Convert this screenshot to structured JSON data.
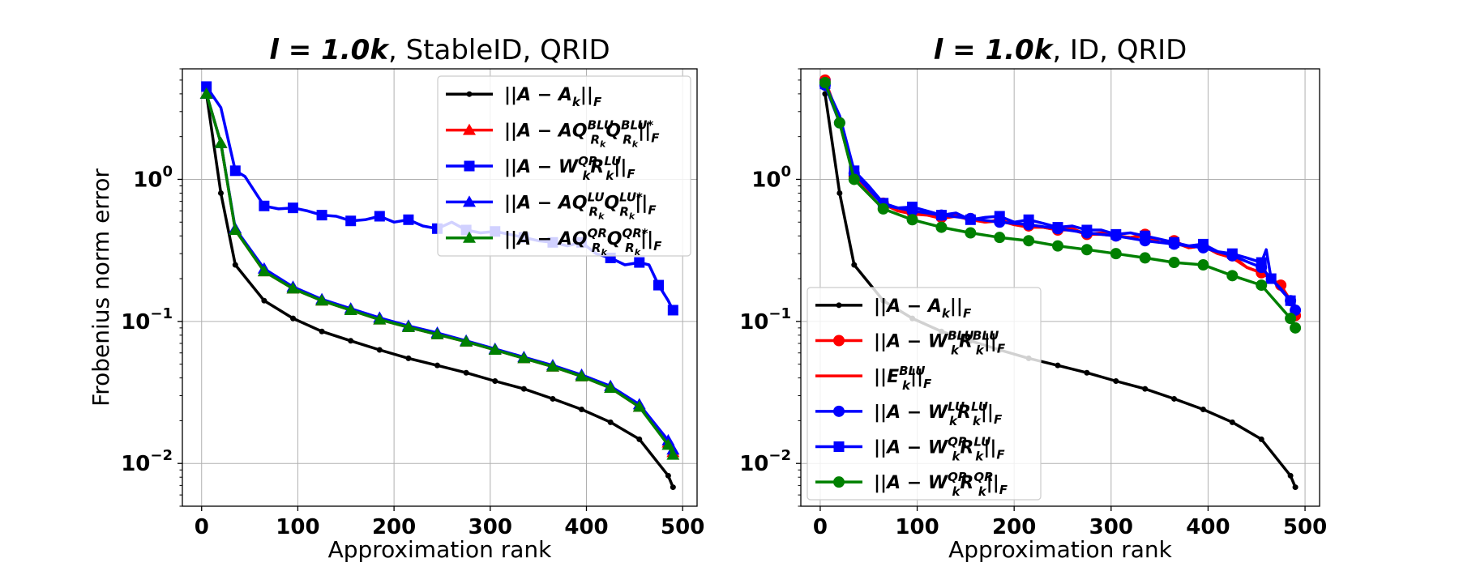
{
  "chart_data": [
    {
      "type": "line",
      "title": {
        "prefix": "l = 1.0k",
        "suffix": ", StableID, QRID"
      },
      "xlabel": "Approximation rank",
      "ylabel": "Frobenius norm error",
      "yscale": "log",
      "xlim": [
        -20,
        515
      ],
      "ylim": [
        0.005,
        6
      ],
      "xticks": [
        0,
        100,
        200,
        300,
        400,
        500
      ],
      "xtick_labels": [
        "0",
        "100",
        "200",
        "300",
        "400",
        "500"
      ],
      "yticks": [
        1,
        0.1,
        0.01
      ],
      "ytick_labels": [
        {
          "base": "10",
          "exp": "0"
        },
        {
          "base": "10",
          "exp": "−1"
        },
        {
          "base": "10",
          "exp": "−2"
        }
      ],
      "grid": true,
      "legend_position": "top-right",
      "series": [
        {
          "label": {
            "pre": "||A − A",
            "sub": "k",
            "post": "||",
            "tail": "F"
          },
          "color": "#000000",
          "marker": "dot",
          "x": [
            5,
            20,
            35,
            65,
            95,
            125,
            155,
            185,
            215,
            245,
            275,
            305,
            335,
            365,
            395,
            425,
            455,
            485,
            490
          ],
          "y": [
            4.0,
            0.8,
            0.25,
            0.14,
            0.105,
            0.085,
            0.073,
            0.063,
            0.055,
            0.049,
            0.0435,
            0.038,
            0.0335,
            0.0285,
            0.024,
            0.0195,
            0.0148,
            0.0082,
            0.0068
          ]
        },
        {
          "label": {
            "pre": "||A − AQ",
            "sup": "BLU",
            "sub": "R",
            "subsub": "k",
            "mid": "Q",
            "sup2": "BLU*",
            "sub2": "R",
            "subsub2": "k",
            "post": "||",
            "tail": "F"
          },
          "color": "#ff0000",
          "marker": "triangle",
          "x": [
            5,
            20,
            35,
            65,
            95,
            125,
            155,
            185,
            215,
            245,
            275,
            305,
            335,
            365,
            395,
            425,
            455,
            485,
            490
          ],
          "y": [
            4.0,
            1.8,
            0.44,
            0.225,
            0.17,
            0.14,
            0.12,
            0.103,
            0.091,
            0.081,
            0.072,
            0.063,
            0.055,
            0.048,
            0.041,
            0.034,
            0.025,
            0.014,
            0.012
          ]
        },
        {
          "label": {
            "pre": "||A − W",
            "sup": "QR",
            "sub": "k",
            "mid": "R",
            "sup2": "LU",
            "sub2": "k",
            "post": "||",
            "tail": "F"
          },
          "color": "#0000ff",
          "marker": "square",
          "x": [
            5,
            20,
            35,
            45,
            65,
            80,
            95,
            110,
            125,
            140,
            155,
            170,
            185,
            200,
            215,
            230,
            245,
            260,
            275,
            290,
            305,
            320,
            335,
            350,
            365,
            380,
            395,
            410,
            425,
            440,
            455,
            465,
            475,
            485,
            490
          ],
          "y": [
            4.5,
            3.2,
            1.15,
            1.05,
            0.65,
            0.62,
            0.63,
            0.6,
            0.56,
            0.55,
            0.51,
            0.52,
            0.55,
            0.5,
            0.52,
            0.47,
            0.45,
            0.5,
            0.44,
            0.42,
            0.43,
            0.41,
            0.39,
            0.37,
            0.36,
            0.34,
            0.36,
            0.3,
            0.28,
            0.25,
            0.26,
            0.25,
            0.18,
            0.14,
            0.12
          ]
        },
        {
          "label": {
            "pre": "||A − AQ",
            "sup": "LU",
            "sub": "R",
            "subsub": "k",
            "mid": "Q",
            "sup2": "LU*",
            "sub2": "R",
            "subsub2": "k",
            "post": "||",
            "tail": "F"
          },
          "color": "#0000ff",
          "marker": "triangle",
          "x": [
            5,
            20,
            35,
            65,
            95,
            125,
            155,
            185,
            215,
            245,
            275,
            305,
            335,
            365,
            395,
            425,
            455,
            485,
            490
          ],
          "y": [
            4.0,
            1.8,
            0.45,
            0.235,
            0.175,
            0.143,
            0.123,
            0.106,
            0.093,
            0.083,
            0.073,
            0.064,
            0.056,
            0.049,
            0.042,
            0.035,
            0.026,
            0.0145,
            0.0125
          ]
        },
        {
          "label": {
            "pre": "||A − AQ",
            "sup": "QR",
            "sub": "R",
            "subsub": "k",
            "mid": "Q",
            "sup2": "QR*",
            "sub2": "R",
            "subsub2": "k",
            "post": "||",
            "tail": "F"
          },
          "color": "#008000",
          "marker": "triangle",
          "x": [
            5,
            20,
            35,
            65,
            95,
            125,
            155,
            185,
            215,
            245,
            275,
            305,
            335,
            365,
            395,
            425,
            455,
            485,
            490
          ],
          "y": [
            4.0,
            1.8,
            0.44,
            0.225,
            0.17,
            0.14,
            0.12,
            0.103,
            0.091,
            0.081,
            0.072,
            0.063,
            0.055,
            0.048,
            0.041,
            0.034,
            0.025,
            0.0135,
            0.0115
          ]
        }
      ]
    },
    {
      "type": "line",
      "title": {
        "prefix": "l = 1.0k",
        "suffix": ", ID, QRID"
      },
      "xlabel": "Approximation rank",
      "ylabel": "",
      "yscale": "log",
      "xlim": [
        -20,
        515
      ],
      "ylim": [
        0.005,
        6
      ],
      "xticks": [
        0,
        100,
        200,
        300,
        400,
        500
      ],
      "xtick_labels": [
        "0",
        "100",
        "200",
        "300",
        "400",
        "500"
      ],
      "yticks": [
        1,
        0.1,
        0.01
      ],
      "ytick_labels": [
        {
          "base": "10",
          "exp": "0"
        },
        {
          "base": "10",
          "exp": "−1"
        },
        {
          "base": "10",
          "exp": "−2"
        }
      ],
      "grid": true,
      "legend_position": "bottom-left",
      "series": [
        {
          "label": {
            "pre": "||A − A",
            "sub": "k",
            "post": "||",
            "tail": "F"
          },
          "color": "#000000",
          "marker": "dot",
          "x": [
            5,
            20,
            35,
            65,
            95,
            125,
            155,
            185,
            215,
            245,
            275,
            305,
            335,
            365,
            395,
            425,
            455,
            485,
            490
          ],
          "y": [
            4.0,
            0.8,
            0.25,
            0.14,
            0.105,
            0.085,
            0.073,
            0.063,
            0.055,
            0.049,
            0.0435,
            0.038,
            0.0335,
            0.0285,
            0.024,
            0.0195,
            0.0148,
            0.0082,
            0.0068
          ]
        },
        {
          "label": {
            "pre": "||A − W",
            "sup": "BLU",
            "sub": "k",
            "mid": "R",
            "sup2": "BLU",
            "sub2": "k",
            "post": "||",
            "tail": "F"
          },
          "color": "#ff0000",
          "marker": "circle",
          "x": [
            5,
            20,
            35,
            50,
            65,
            80,
            95,
            110,
            125,
            140,
            155,
            170,
            185,
            200,
            215,
            230,
            245,
            260,
            275,
            290,
            305,
            320,
            335,
            350,
            365,
            380,
            395,
            410,
            425,
            440,
            455,
            465,
            475,
            485,
            490
          ],
          "y": [
            5.0,
            2.6,
            1.05,
            0.85,
            0.68,
            0.6,
            0.58,
            0.57,
            0.54,
            0.56,
            0.53,
            0.5,
            0.52,
            0.48,
            0.47,
            0.46,
            0.44,
            0.45,
            0.41,
            0.42,
            0.4,
            0.39,
            0.41,
            0.36,
            0.37,
            0.33,
            0.34,
            0.3,
            0.29,
            0.24,
            0.22,
            0.2,
            0.18,
            0.14,
            0.11
          ]
        },
        {
          "label": {
            "pre": "||E",
            "sup": "BLU",
            "sub": "k",
            "post": "||",
            "tail": "F"
          },
          "color": "#ff0000",
          "marker": "none",
          "x": [
            5,
            20,
            35,
            50,
            65,
            80,
            95,
            110,
            125,
            140,
            155,
            170,
            185,
            200,
            215,
            230,
            245,
            260,
            275,
            290,
            305,
            320,
            335,
            350,
            365,
            380,
            395,
            410,
            425,
            440,
            455,
            465,
            475,
            485,
            490
          ],
          "y": [
            5.0,
            2.5,
            1.02,
            0.83,
            0.67,
            0.6,
            0.57,
            0.56,
            0.53,
            0.55,
            0.52,
            0.5,
            0.51,
            0.48,
            0.46,
            0.46,
            0.44,
            0.44,
            0.41,
            0.41,
            0.4,
            0.39,
            0.4,
            0.36,
            0.36,
            0.33,
            0.34,
            0.3,
            0.28,
            0.24,
            0.22,
            0.2,
            0.18,
            0.14,
            0.11
          ]
        },
        {
          "label": {
            "pre": "||A − W",
            "sup": "LU",
            "sub": "k",
            "mid": "R",
            "sup2": "LU",
            "sub2": "k",
            "post": "||",
            "tail": "F"
          },
          "color": "#0000ff",
          "marker": "circle",
          "x": [
            5,
            20,
            35,
            65,
            95,
            125,
            155,
            185,
            215,
            245,
            275,
            305,
            335,
            365,
            395,
            425,
            455,
            485,
            490
          ],
          "y": [
            4.6,
            2.5,
            1.1,
            0.66,
            0.6,
            0.56,
            0.53,
            0.5,
            0.48,
            0.45,
            0.42,
            0.4,
            0.37,
            0.35,
            0.33,
            0.29,
            0.24,
            0.14,
            0.12
          ]
        },
        {
          "label": {
            "pre": "||A − W",
            "sup": "QR",
            "sub": "k",
            "mid": "R",
            "sup2": "LU",
            "sub2": "k",
            "post": "||",
            "tail": "F"
          },
          "color": "#0000ff",
          "marker": "square",
          "x": [
            5,
            20,
            35,
            50,
            65,
            80,
            95,
            110,
            125,
            140,
            155,
            170,
            185,
            200,
            215,
            230,
            245,
            260,
            275,
            290,
            305,
            320,
            335,
            350,
            365,
            380,
            395,
            410,
            425,
            440,
            455,
            460,
            465,
            475,
            485,
            490
          ],
          "y": [
            4.7,
            2.8,
            1.15,
            0.9,
            0.68,
            0.63,
            0.64,
            0.6,
            0.56,
            0.58,
            0.52,
            0.54,
            0.55,
            0.5,
            0.52,
            0.49,
            0.46,
            0.47,
            0.44,
            0.44,
            0.41,
            0.42,
            0.4,
            0.38,
            0.36,
            0.34,
            0.35,
            0.31,
            0.3,
            0.28,
            0.26,
            0.32,
            0.2,
            0.17,
            0.14,
            0.12
          ]
        },
        {
          "label": {
            "pre": "||A − W",
            "sup": "QR",
            "sub": "k",
            "mid": "R",
            "sup2": "QR",
            "sub2": "k",
            "post": "||",
            "tail": "F"
          },
          "color": "#008000",
          "marker": "circle",
          "x": [
            5,
            20,
            35,
            65,
            95,
            125,
            155,
            185,
            215,
            245,
            275,
            305,
            335,
            365,
            395,
            425,
            455,
            485,
            490
          ],
          "y": [
            4.8,
            2.5,
            1.0,
            0.62,
            0.52,
            0.46,
            0.42,
            0.39,
            0.37,
            0.34,
            0.32,
            0.3,
            0.28,
            0.26,
            0.25,
            0.21,
            0.18,
            0.105,
            0.09
          ]
        }
      ]
    }
  ]
}
